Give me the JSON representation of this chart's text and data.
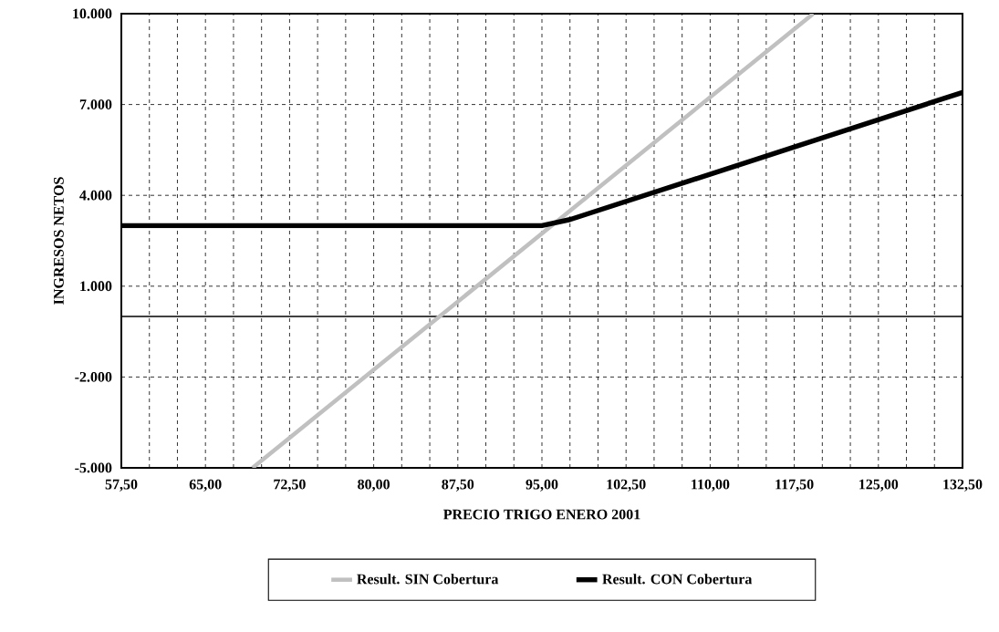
{
  "chart_data": {
    "type": "line",
    "xlabel": "PRECIO TRIGO ENERO  2001",
    "ylabel": "INGRESOS NETOS",
    "xlim": [
      57.5,
      132.5
    ],
    "ylim": [
      -5000,
      10000
    ],
    "xticks": [
      {
        "value": 57.5,
        "label": "57,50"
      },
      {
        "value": 65,
        "label": "65,00"
      },
      {
        "value": 72.5,
        "label": "72,50"
      },
      {
        "value": 80,
        "label": "80,00"
      },
      {
        "value": 87.5,
        "label": "87,50"
      },
      {
        "value": 95,
        "label": "95,00"
      },
      {
        "value": 102.5,
        "label": "102,50"
      },
      {
        "value": 110,
        "label": "110,00"
      },
      {
        "value": 117.5,
        "label": "117,50"
      },
      {
        "value": 125,
        "label": "125,00"
      },
      {
        "value": 132.5,
        "label": "132,50"
      }
    ],
    "yticks": [
      {
        "value": -5000,
        "label": "-5.000"
      },
      {
        "value": -2000,
        "label": "-2.000"
      },
      {
        "value": 1000,
        "label": "1.000"
      },
      {
        "value": 4000,
        "label": "4.000"
      },
      {
        "value": 7000,
        "label": "7.000"
      },
      {
        "value": 10000,
        "label": "10.000"
      }
    ],
    "grid": true,
    "legend": "bottom",
    "marker": "none",
    "line_style": "solid",
    "ref_lines": [
      {
        "axis": "y",
        "value": 0,
        "color": "#000000"
      }
    ],
    "series": [
      {
        "name": "Result. SIN Cobertura",
        "color": "#c0c0c0",
        "x": [
          69.2,
          119.2
        ],
        "values": [
          -5000,
          10000
        ]
      },
      {
        "name": "Result. CON Cobertura",
        "color": "#000000",
        "x": [
          57.5,
          95,
          97.5,
          132.5
        ],
        "values": [
          3000,
          3000,
          3200,
          7400
        ]
      }
    ]
  }
}
